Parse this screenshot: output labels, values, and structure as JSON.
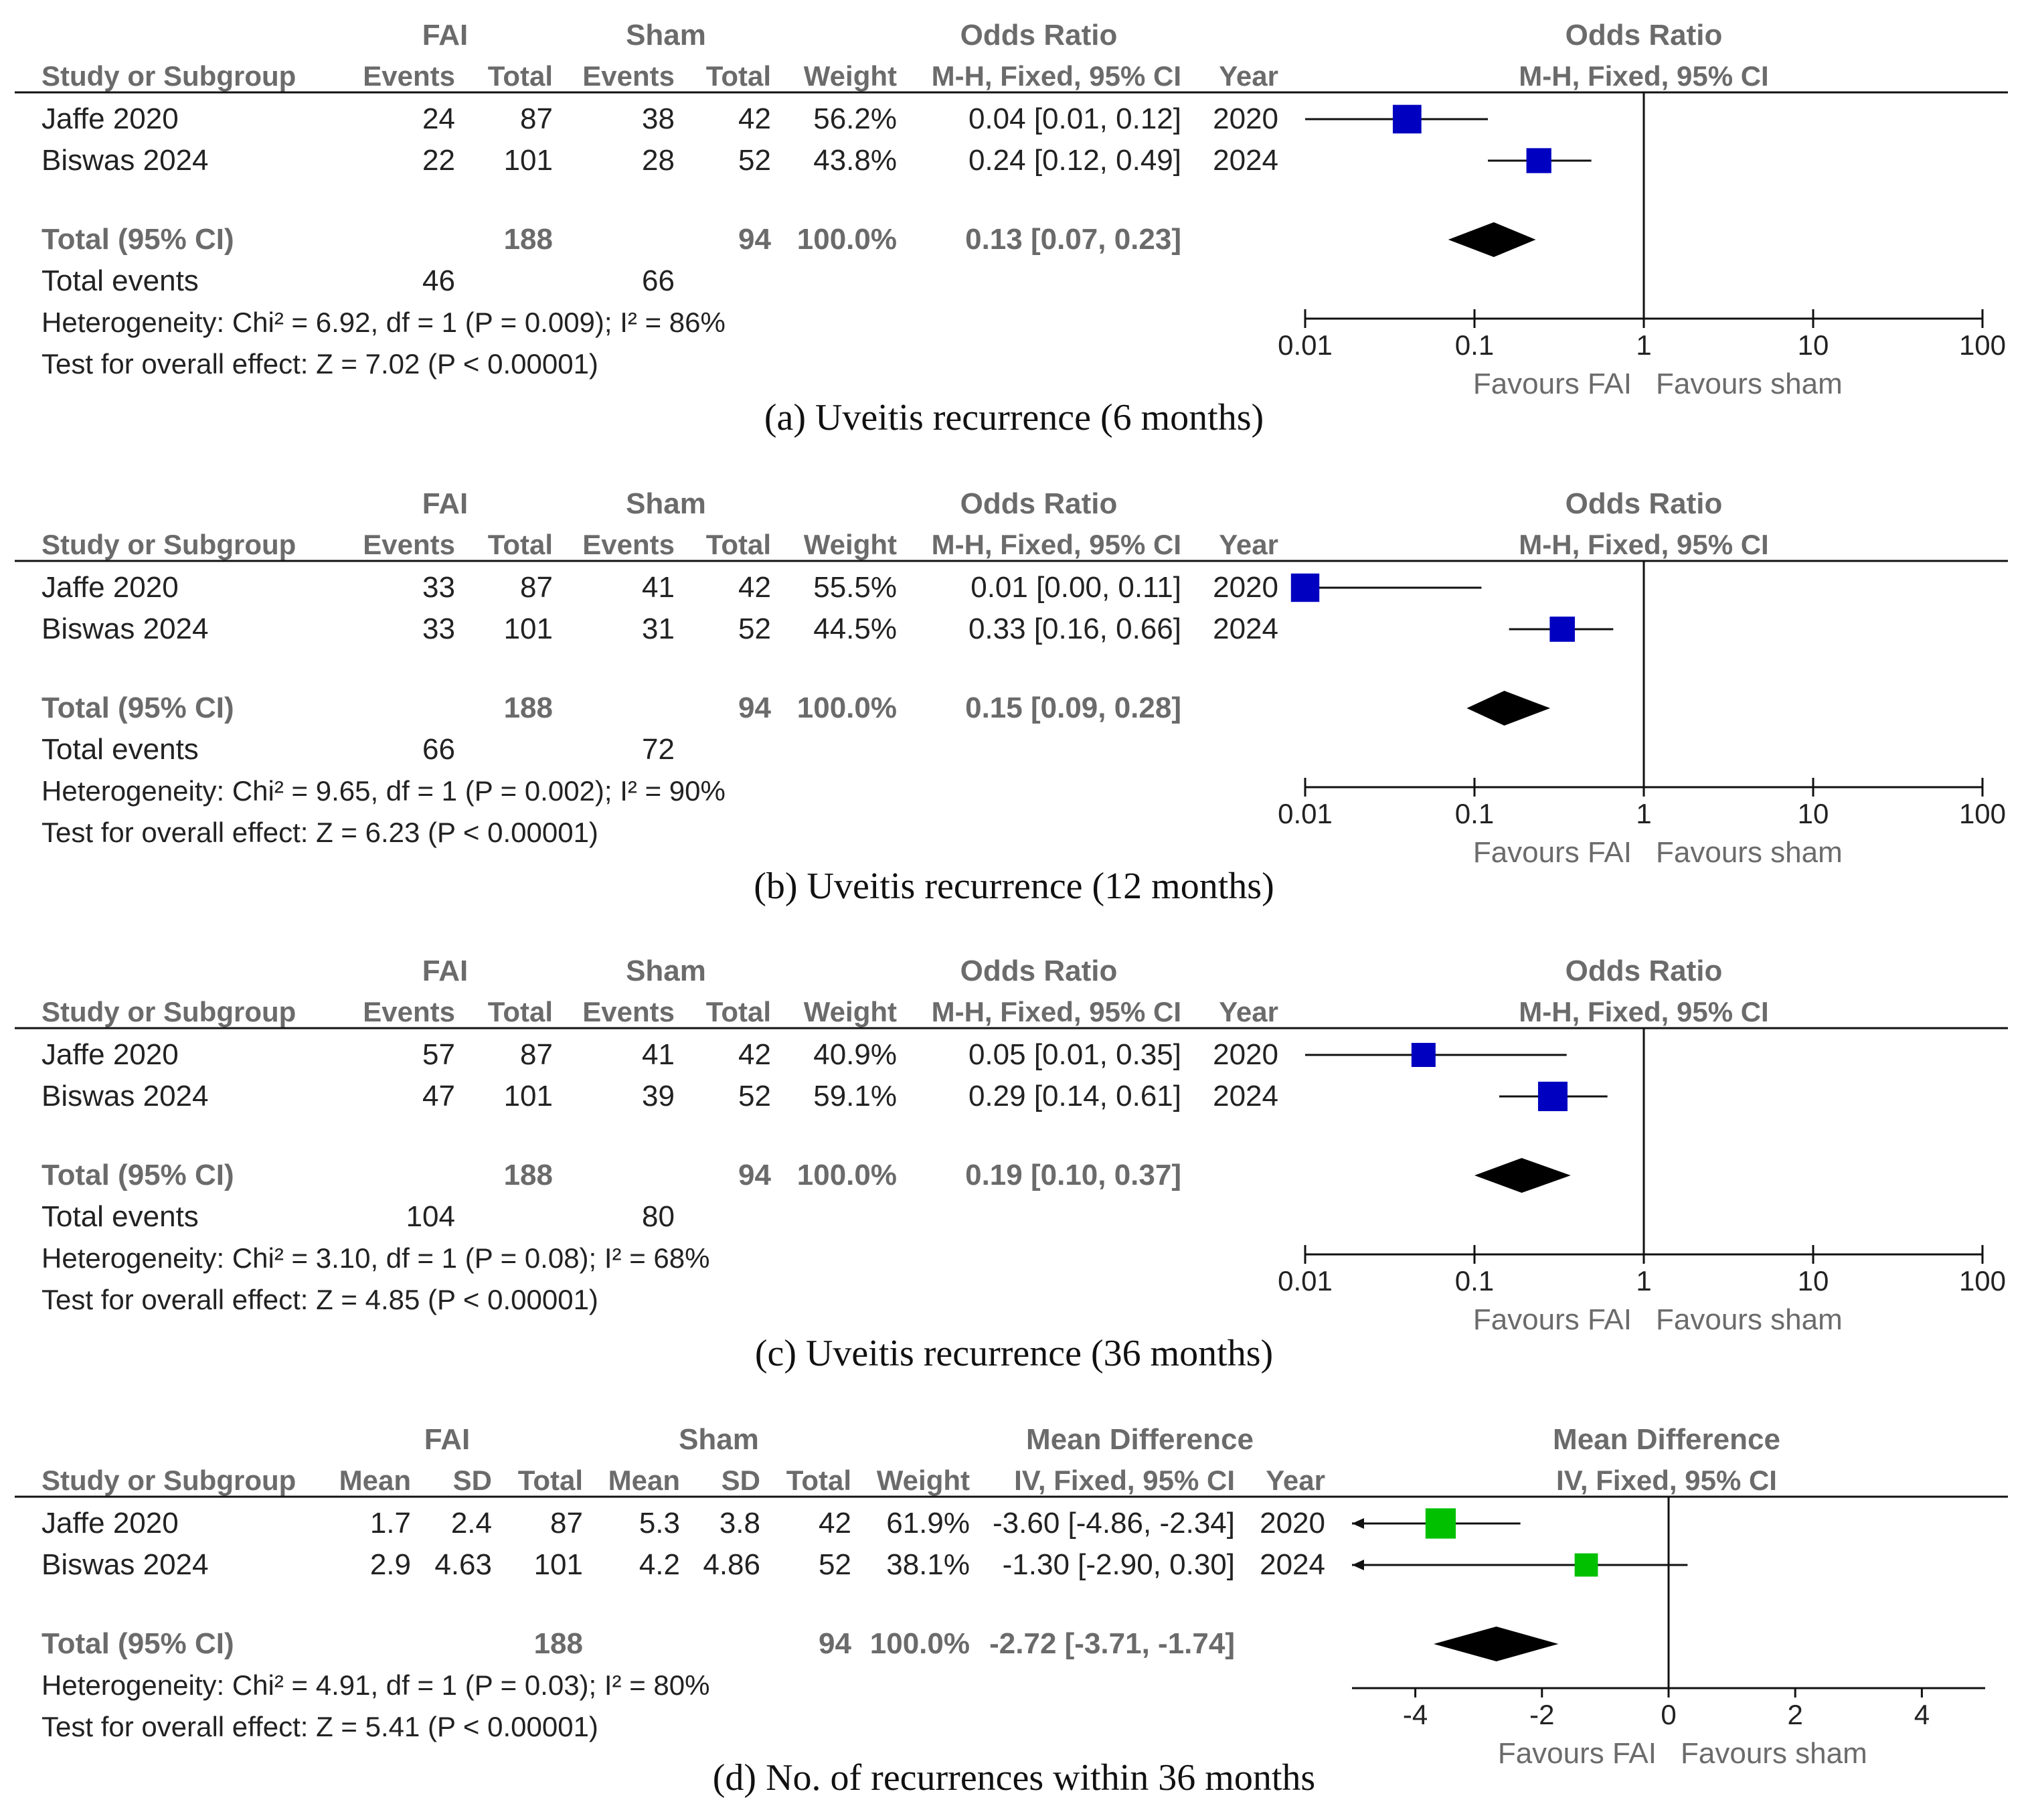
{
  "chart_data": [
    {
      "type": "forest",
      "caption": "(a) Uveitis recurrence (6 months)",
      "measure_header": "Odds Ratio",
      "method": "M-H, Fixed, 95% CI",
      "group1": "FAI",
      "group2": "Sham",
      "columns": [
        "Study or Subgroup",
        "Events",
        "Total",
        "Events",
        "Total",
        "Weight",
        "M-H, Fixed, 95% CI",
        "Year"
      ],
      "studies": [
        {
          "name": "Jaffe 2020",
          "g1": [
            "24",
            "87"
          ],
          "g2": [
            "38",
            "42"
          ],
          "weight": "56.2%",
          "ci_text": "0.04 [0.01, 0.12]",
          "year": "2020",
          "est": 0.04,
          "lo": 0.01,
          "hi": 0.12,
          "w": 56.2
        },
        {
          "name": "Biswas 2024",
          "g1": [
            "22",
            "101"
          ],
          "g2": [
            "28",
            "52"
          ],
          "weight": "43.8%",
          "ci_text": "0.24 [0.12, 0.49]",
          "year": "2024",
          "est": 0.24,
          "lo": 0.12,
          "hi": 0.49,
          "w": 43.8
        }
      ],
      "total": {
        "label": "Total (95% CI)",
        "g1_total": "188",
        "g2_total": "94",
        "weight": "100.0%",
        "ci_text": "0.13 [0.07, 0.23]",
        "est": 0.13,
        "lo": 0.07,
        "hi": 0.23
      },
      "total_events": {
        "label": "Total events",
        "g1": "46",
        "g2": "66"
      },
      "heterogeneity": "Heterogeneity: Chi² = 6.92, df = 1 (P = 0.009); I² = 86%",
      "overall": "Test for overall effect: Z = 7.02 (P < 0.00001)",
      "axis": {
        "scale": "log",
        "ticks": [
          0.01,
          0.1,
          1,
          10,
          100
        ],
        "tick_labels": [
          "0.01",
          "0.1",
          "1",
          "10",
          "100"
        ],
        "null": 1
      },
      "favours_left": "Favours FAI",
      "favours_right": "Favours sham",
      "marker_color": "#0000c0"
    },
    {
      "type": "forest",
      "caption": "(b) Uveitis recurrence (12 months)",
      "measure_header": "Odds Ratio",
      "method": "M-H, Fixed, 95% CI",
      "group1": "FAI",
      "group2": "Sham",
      "columns": [
        "Study or Subgroup",
        "Events",
        "Total",
        "Events",
        "Total",
        "Weight",
        "M-H, Fixed, 95% CI",
        "Year"
      ],
      "studies": [
        {
          "name": "Jaffe 2020",
          "g1": [
            "33",
            "87"
          ],
          "g2": [
            "41",
            "42"
          ],
          "weight": "55.5%",
          "ci_text": "0.01 [0.00, 0.11]",
          "year": "2020",
          "est": 0.01,
          "lo": 0.0,
          "hi": 0.11,
          "w": 55.5
        },
        {
          "name": "Biswas 2024",
          "g1": [
            "33",
            "101"
          ],
          "g2": [
            "31",
            "52"
          ],
          "weight": "44.5%",
          "ci_text": "0.33 [0.16, 0.66]",
          "year": "2024",
          "est": 0.33,
          "lo": 0.16,
          "hi": 0.66,
          "w": 44.5
        }
      ],
      "total": {
        "label": "Total (95% CI)",
        "g1_total": "188",
        "g2_total": "94",
        "weight": "100.0%",
        "ci_text": "0.15 [0.09, 0.28]",
        "est": 0.15,
        "lo": 0.09,
        "hi": 0.28
      },
      "total_events": {
        "label": "Total events",
        "g1": "66",
        "g2": "72"
      },
      "heterogeneity": "Heterogeneity: Chi² = 9.65, df = 1 (P = 0.002); I² = 90%",
      "overall": "Test for overall effect: Z = 6.23 (P < 0.00001)",
      "axis": {
        "scale": "log",
        "ticks": [
          0.01,
          0.1,
          1,
          10,
          100
        ],
        "tick_labels": [
          "0.01",
          "0.1",
          "1",
          "10",
          "100"
        ],
        "null": 1
      },
      "favours_left": "Favours FAI",
      "favours_right": "Favours sham",
      "marker_color": "#0000c0"
    },
    {
      "type": "forest",
      "caption": "(c) Uveitis recurrence (36 months)",
      "measure_header": "Odds Ratio",
      "method": "M-H, Fixed, 95% CI",
      "group1": "FAI",
      "group2": "Sham",
      "columns": [
        "Study or Subgroup",
        "Events",
        "Total",
        "Events",
        "Total",
        "Weight",
        "M-H, Fixed, 95% CI",
        "Year"
      ],
      "studies": [
        {
          "name": "Jaffe 2020",
          "g1": [
            "57",
            "87"
          ],
          "g2": [
            "41",
            "42"
          ],
          "weight": "40.9%",
          "ci_text": "0.05 [0.01, 0.35]",
          "year": "2020",
          "est": 0.05,
          "lo": 0.01,
          "hi": 0.35,
          "w": 40.9
        },
        {
          "name": "Biswas 2024",
          "g1": [
            "47",
            "101"
          ],
          "g2": [
            "39",
            "52"
          ],
          "weight": "59.1%",
          "ci_text": "0.29 [0.14, 0.61]",
          "year": "2024",
          "est": 0.29,
          "lo": 0.14,
          "hi": 0.61,
          "w": 59.1
        }
      ],
      "total": {
        "label": "Total (95% CI)",
        "g1_total": "188",
        "g2_total": "94",
        "weight": "100.0%",
        "ci_text": "0.19 [0.10, 0.37]",
        "est": 0.19,
        "lo": 0.1,
        "hi": 0.37
      },
      "total_events": {
        "label": "Total events",
        "g1": "104",
        "g2": "80"
      },
      "heterogeneity": "Heterogeneity: Chi² = 3.10, df = 1 (P = 0.08); I² = 68%",
      "overall": "Test for overall effect: Z = 4.85 (P < 0.00001)",
      "axis": {
        "scale": "log",
        "ticks": [
          0.01,
          0.1,
          1,
          10,
          100
        ],
        "tick_labels": [
          "0.01",
          "0.1",
          "1",
          "10",
          "100"
        ],
        "null": 1
      },
      "favours_left": "Favours FAI",
      "favours_right": "Favours sham",
      "marker_color": "#0000c0"
    },
    {
      "type": "forest",
      "caption": "(d) No. of recurrences within 36 months",
      "measure_header": "Mean Difference",
      "method": "IV, Fixed, 95% CI",
      "group1": "FAI",
      "group2": "Sham",
      "columns": [
        "Study or Subgroup",
        "Mean",
        "SD",
        "Total",
        "Mean",
        "SD",
        "Total",
        "Weight",
        "IV, Fixed, 95% CI",
        "Year"
      ],
      "studies": [
        {
          "name": "Jaffe 2020",
          "g1": [
            "1.7",
            "2.4",
            "87"
          ],
          "g2": [
            "5.3",
            "3.8",
            "42"
          ],
          "weight": "61.9%",
          "ci_text": "-3.60 [-4.86, -2.34]",
          "year": "2020",
          "est": -3.6,
          "lo": -4.86,
          "hi": -2.34,
          "w": 61.9
        },
        {
          "name": "Biswas 2024",
          "g1": [
            "2.9",
            "4.63",
            "101"
          ],
          "g2": [
            "4.2",
            "4.86",
            "52"
          ],
          "weight": "38.1%",
          "ci_text": "-1.30 [-2.90, 0.30]",
          "year": "2024",
          "est": -1.3,
          "lo": -2.9,
          "hi": 0.3,
          "w": 38.1
        }
      ],
      "total": {
        "label": "Total (95% CI)",
        "g1_total": "188",
        "g2_total": "94",
        "weight": "100.0%",
        "ci_text": "-2.72 [-3.71, -1.74]",
        "est": -2.72,
        "lo": -3.71,
        "hi": -1.74
      },
      "total_events": null,
      "heterogeneity": "Heterogeneity: Chi² = 4.91, df = 1 (P = 0.03); I² = 80%",
      "overall": "Test for overall effect: Z = 5.41 (P < 0.00001)",
      "axis": {
        "scale": "linear",
        "ticks": [
          -4,
          -2,
          0,
          2,
          4
        ],
        "tick_labels": [
          "-4",
          "-2",
          "0",
          "2",
          "4"
        ],
        "null": 0
      },
      "favours_left": "Favours FAI",
      "favours_right": "Favours sham",
      "marker_color": "#00c000"
    }
  ]
}
